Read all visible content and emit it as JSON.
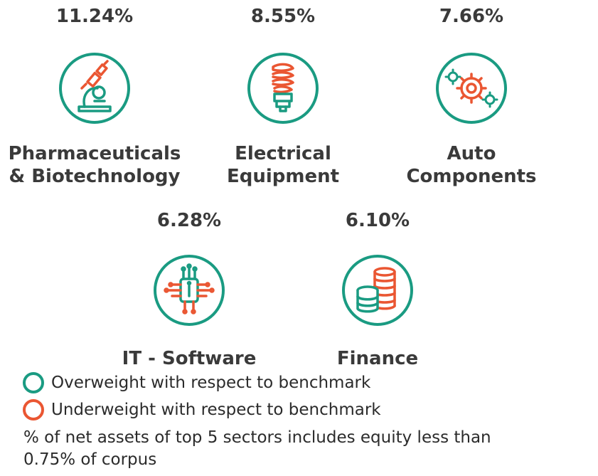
{
  "sectors": [
    {
      "percent": "11.24%",
      "name_line1": "Pharmaceuticals",
      "name_line2": "& Biotechnology",
      "icon": "microscope-icon",
      "weight": "overweight"
    },
    {
      "percent": "8.55%",
      "name_line1": "Electrical",
      "name_line2": "Equipment",
      "icon": "light-bulb-icon",
      "weight": "overweight"
    },
    {
      "percent": "7.66%",
      "name_line1": "Auto",
      "name_line2": "Components",
      "icon": "gears-icon",
      "weight": "overweight"
    },
    {
      "percent": "6.28%",
      "name_line1": "IT - Software",
      "name_line2": "",
      "icon": "circuit-chip-icon",
      "weight": "overweight"
    },
    {
      "percent": "6.10%",
      "name_line1": "Finance",
      "name_line2": "",
      "icon": "coins-stack-icon",
      "weight": "overweight"
    }
  ],
  "legend": {
    "overweight": "Overweight with respect to benchmark",
    "underweight": "Underweight with respect to benchmark"
  },
  "footnote": "% of net assets of top 5 sectors includes equity less than 0.75% of corpus",
  "colors": {
    "overweight": "#1a9b82",
    "underweight": "#ea5632",
    "text": "#3a3a3a"
  }
}
